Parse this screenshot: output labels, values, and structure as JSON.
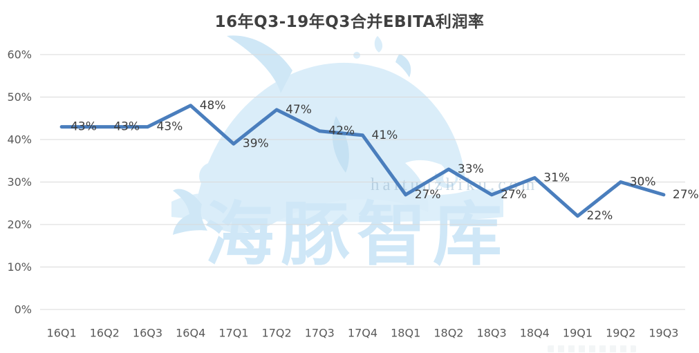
{
  "chart_data": {
    "type": "line",
    "title": "16年Q3-19年Q3合并EBITA利润率",
    "categories": [
      "16Q1",
      "16Q2",
      "16Q3",
      "16Q4",
      "17Q1",
      "17Q2",
      "17Q3",
      "17Q4",
      "18Q1",
      "18Q2",
      "18Q3",
      "18Q4",
      "19Q1",
      "19Q2",
      "19Q3"
    ],
    "values": [
      43,
      43,
      43,
      48,
      39,
      47,
      42,
      41,
      27,
      33,
      27,
      31,
      22,
      30,
      27
    ],
    "point_labels": [
      "43%",
      "43%",
      "43%",
      "48%",
      "39%",
      "47%",
      "42%",
      "41%",
      "27%",
      "33%",
      "27%",
      "31%",
      "22%",
      "30%",
      "27%"
    ],
    "xlabel": "",
    "ylabel": "",
    "ylim": [
      0,
      60
    ],
    "yticks": [
      "0%",
      "10%",
      "20%",
      "30%",
      "40%",
      "50%",
      "60%"
    ],
    "grid": "horizontal",
    "legend": "none",
    "colors": {
      "line": "#4a7ebd",
      "data_label": "#3d3d3d",
      "axis_label": "#595959",
      "gridline": "#d9d9d9",
      "background": "#ffffff",
      "title": "#404040"
    }
  },
  "watermark": {
    "brand": "海豚智库",
    "domain": "haitunzhiku.com",
    "color": "#cfe7f7"
  }
}
